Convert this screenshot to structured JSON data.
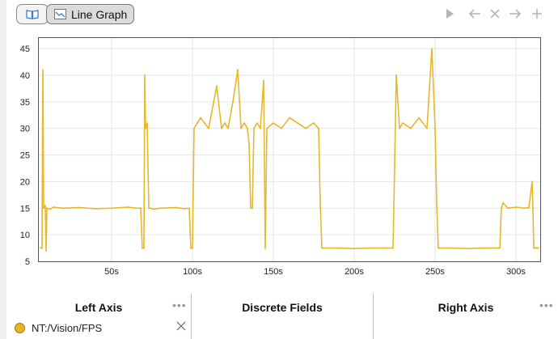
{
  "toolbar": {
    "tabs": [
      {
        "label": "",
        "icon": "book-icon"
      },
      {
        "label": "Line Graph",
        "icon": "line-graph-icon"
      }
    ],
    "actions": [
      "play-icon",
      "back-arrow-icon",
      "close-icon",
      "forward-arrow-icon",
      "add-icon"
    ]
  },
  "chart_data": {
    "type": "line",
    "title": "",
    "xlabel": "",
    "ylabel": "",
    "xlim": [
      5,
      315
    ],
    "ylim": [
      5,
      47
    ],
    "yticks": [
      5,
      10,
      15,
      20,
      25,
      30,
      35,
      40,
      45
    ],
    "xticks": [
      50,
      100,
      150,
      200,
      250,
      300
    ],
    "xtick_labels": [
      "50s",
      "100s",
      "150s",
      "200s",
      "250s",
      "300s"
    ],
    "ytick_labels": [
      "5",
      "10",
      "15",
      "20",
      "25",
      "30",
      "35",
      "40",
      "45"
    ],
    "grid": true,
    "series": [
      {
        "color": "#e6b422",
        "x": [
          6,
          7,
          7.5,
          8,
          9,
          9.5,
          10,
          12,
          14,
          20,
          30,
          40,
          50,
          60,
          65,
          68,
          69,
          70,
          70.5,
          71,
          72,
          73,
          74,
          76,
          80,
          90,
          95,
          98,
          99,
          100,
          101,
          103,
          105,
          110,
          115,
          118,
          120,
          122,
          125,
          128,
          130,
          132,
          134,
          135,
          136,
          137,
          138,
          140,
          142,
          144,
          145,
          146,
          150,
          155,
          160,
          165,
          170,
          175,
          178,
          179,
          180,
          190,
          200,
          210,
          220,
          224,
          225,
          226,
          228,
          230,
          235,
          240,
          245,
          248,
          250,
          251,
          252,
          260,
          270,
          280,
          285,
          290,
          291,
          292,
          295,
          300,
          305,
          308,
          310,
          310.5,
          311,
          312,
          314
        ],
        "values": [
          7.5,
          7.5,
          41,
          15,
          15.5,
          7,
          15,
          14.8,
          15.2,
          15,
          15.1,
          14.9,
          15,
          15.2,
          15,
          15,
          7.5,
          7.5,
          40,
          30,
          31,
          15,
          15,
          14.8,
          15,
          15.1,
          14.9,
          15,
          7.5,
          7.5,
          30,
          31,
          32,
          30,
          38,
          30,
          31,
          30,
          35,
          41,
          30,
          31,
          30,
          27,
          15,
          15,
          30,
          31,
          30,
          39,
          7.5,
          30,
          31,
          30,
          32,
          31,
          30,
          31,
          30,
          16,
          7.5,
          7.5,
          7.4,
          7.5,
          7.5,
          7.5,
          23,
          40,
          30,
          31,
          30,
          32,
          30,
          45,
          30,
          16,
          7.5,
          7.5,
          7.4,
          7.5,
          7.5,
          7.5,
          15,
          16,
          15,
          15.2,
          15,
          15.1,
          20,
          15,
          7.5,
          7.5,
          7.5
        ]
      }
    ]
  },
  "panels": {
    "left": {
      "title": "Left Axis",
      "menu": "•••",
      "series": [
        {
          "name": "NT:/Vision/FPS",
          "color": "#e6b422"
        }
      ]
    },
    "discrete": {
      "title": "Discrete Fields"
    },
    "right": {
      "title": "Right Axis",
      "menu": "•••"
    }
  }
}
